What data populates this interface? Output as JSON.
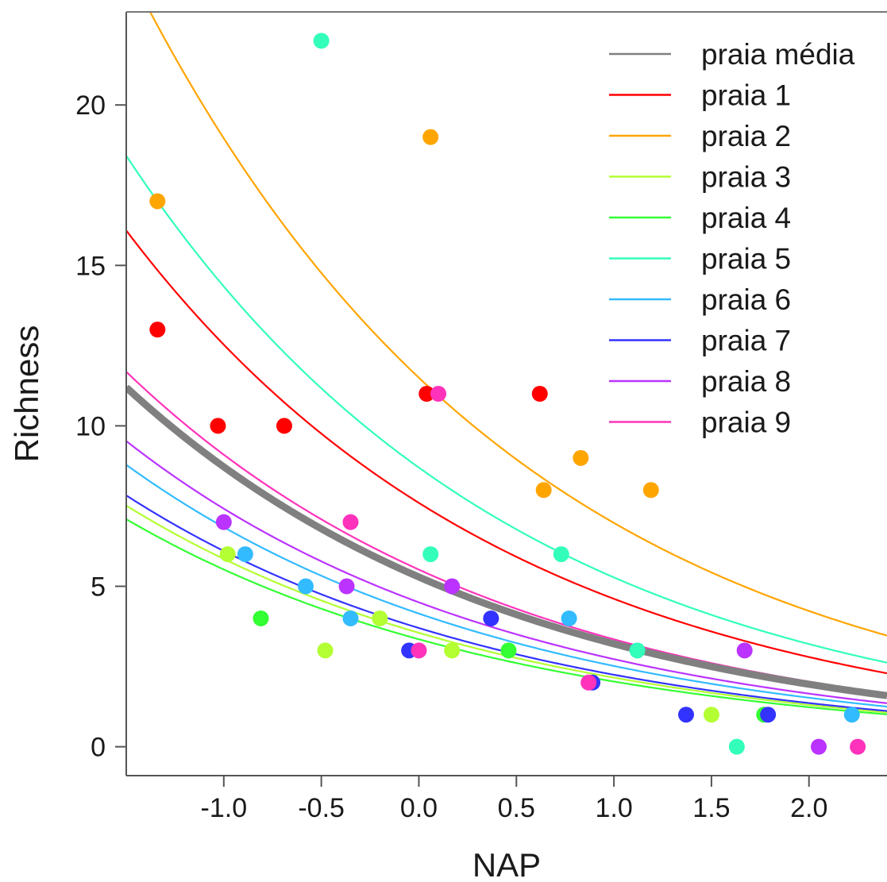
{
  "chart_data": {
    "type": "scatter",
    "xlabel": "NAP",
    "ylabel": "Richness",
    "xlim": [
      -1.5,
      2.4
    ],
    "ylim": [
      -0.9,
      22.9
    ],
    "xticks": [
      -1.0,
      -0.5,
      0.0,
      0.5,
      1.0,
      1.5,
      2.0
    ],
    "xtick_labels": [
      "-1.0",
      "-0.5",
      "0.0",
      "0.5",
      "1.0",
      "1.5",
      "2.0"
    ],
    "yticks": [
      0,
      5,
      10,
      15,
      20
    ],
    "ytick_labels": [
      "0",
      "5",
      "10",
      "15",
      "20"
    ],
    "grid": false,
    "legend_position": "top-right",
    "curve_model": "Richness = a * exp(b * NAP)",
    "series": [
      {
        "name": "praia média",
        "color": "#808080",
        "a": 5.29,
        "b": -0.5,
        "thick": true,
        "points": []
      },
      {
        "name": "praia 1",
        "color": "#ff0000",
        "a": 7.6,
        "b": -0.5,
        "points": [
          [
            -1.34,
            13
          ],
          [
            -1.03,
            10
          ],
          [
            -0.69,
            10
          ],
          [
            0.04,
            11
          ],
          [
            0.62,
            11
          ]
        ]
      },
      {
        "name": "praia 2",
        "color": "#ffa500",
        "a": 11.5,
        "b": -0.5,
        "points": [
          [
            -1.34,
            17
          ],
          [
            0.06,
            19
          ],
          [
            0.64,
            8
          ],
          [
            0.83,
            9
          ],
          [
            1.19,
            8
          ]
        ]
      },
      {
        "name": "praia 3",
        "color": "#b3ff33",
        "a": 3.55,
        "b": -0.5,
        "points": [
          [
            -0.98,
            6
          ],
          [
            -0.48,
            3
          ],
          [
            -0.2,
            4
          ],
          [
            0.17,
            3
          ],
          [
            1.5,
            1
          ]
        ]
      },
      {
        "name": "praia 4",
        "color": "#33ff33",
        "a": 3.35,
        "b": -0.5,
        "points": [
          [
            -0.81,
            4
          ],
          [
            0.46,
            3
          ],
          [
            1.77,
            1
          ]
        ]
      },
      {
        "name": "praia 5",
        "color": "#33ffbb",
        "a": 8.7,
        "b": -0.5,
        "points": [
          [
            -0.5,
            22
          ],
          [
            0.06,
            6
          ],
          [
            0.73,
            6
          ],
          [
            1.12,
            3
          ],
          [
            1.63,
            0
          ]
        ]
      },
      {
        "name": "praia 6",
        "color": "#33bbff",
        "a": 4.15,
        "b": -0.5,
        "points": [
          [
            -0.89,
            6
          ],
          [
            -0.58,
            5
          ],
          [
            -0.35,
            4
          ],
          [
            0.77,
            4
          ],
          [
            2.22,
            1
          ]
        ]
      },
      {
        "name": "praia 7",
        "color": "#3333ff",
        "a": 3.7,
        "b": -0.5,
        "points": [
          [
            -0.05,
            3
          ],
          [
            0.37,
            4
          ],
          [
            0.89,
            2
          ],
          [
            1.37,
            1
          ],
          [
            1.79,
            1
          ]
        ]
      },
      {
        "name": "praia 8",
        "color": "#bb33ff",
        "a": 4.5,
        "b": -0.5,
        "points": [
          [
            -1.0,
            7
          ],
          [
            -0.37,
            5
          ],
          [
            0.17,
            5
          ],
          [
            1.67,
            3
          ],
          [
            2.05,
            0
          ]
        ]
      },
      {
        "name": "praia 9",
        "color": "#ff33bb",
        "a": 5.52,
        "b": -0.5,
        "points": [
          [
            -0.35,
            7
          ],
          [
            0.0,
            3
          ],
          [
            0.1,
            11
          ],
          [
            0.87,
            2
          ],
          [
            2.25,
            0
          ]
        ]
      }
    ]
  }
}
